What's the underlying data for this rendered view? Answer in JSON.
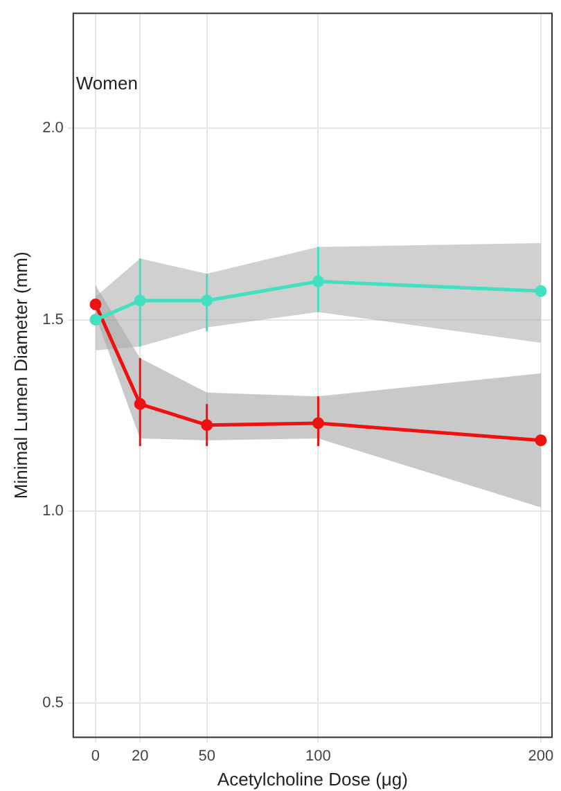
{
  "chart_data": {
    "type": "line",
    "xlabel": "Acetylcholine Dose (μg)",
    "ylabel": "Minimal Lumen Diameter (mm)",
    "annotations": [
      "Women"
    ],
    "x": [
      0,
      20,
      50,
      100,
      200
    ],
    "xlim": [
      -10,
      205
    ],
    "xticks": [
      0,
      20,
      50,
      100,
      200
    ],
    "ylim": [
      0.41,
      2.3
    ],
    "yticks": [
      {
        "value": 0.5,
        "label": "0.5"
      },
      {
        "value": 1.0,
        "label": "1.0"
      },
      {
        "value": 1.5,
        "label": "1.5"
      },
      {
        "value": 2.0,
        "label": "2.0"
      }
    ],
    "grid": true,
    "legend": false,
    "marker": "circle",
    "line_style": "solid",
    "series": [
      {
        "color": "#40e0c0",
        "values": [
          1.5,
          1.55,
          1.55,
          1.6,
          1.575
        ],
        "errors": [
          null,
          [
            1.43,
            1.66
          ],
          [
            1.47,
            1.62
          ],
          [
            1.52,
            1.69
          ],
          null
        ],
        "lower": [
          1.42,
          1.43,
          1.48,
          1.52,
          1.44
        ],
        "upper": [
          1.56,
          1.66,
          1.62,
          1.69,
          1.7
        ]
      },
      {
        "color": "#ee1111",
        "values": [
          1.54,
          1.28,
          1.225,
          1.23,
          1.185
        ],
        "errors": [
          null,
          [
            1.17,
            1.4
          ],
          [
            1.17,
            1.28
          ],
          [
            1.17,
            1.3
          ],
          null
        ],
        "lower": [
          1.51,
          1.19,
          1.185,
          1.19,
          1.01
        ],
        "upper": [
          1.59,
          1.4,
          1.31,
          1.3,
          1.36
        ]
      }
    ]
  }
}
